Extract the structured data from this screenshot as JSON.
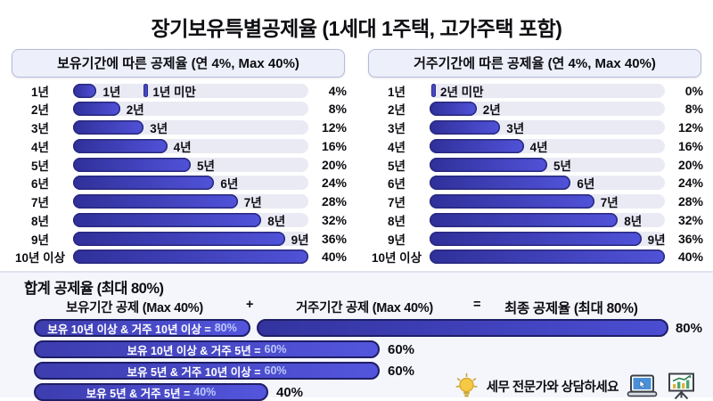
{
  "title": "장기보유특별공제율 (1세대 1주택, 고가주택 포함)",
  "panels": [
    {
      "header": "보유기간에 따른 공제율 (연 4%, Max 40%)",
      "rows": [
        {
          "label": "1년",
          "bar_label": "1년",
          "marker": "1년 미만",
          "value": 4,
          "value_text": "4%"
        },
        {
          "label": "2년",
          "bar_label": "2년",
          "value": 8,
          "value_text": "8%"
        },
        {
          "label": "3년",
          "bar_label": "3년",
          "value": 12,
          "value_text": "12%"
        },
        {
          "label": "4년",
          "bar_label": "4년",
          "value": 16,
          "value_text": "16%"
        },
        {
          "label": "5년",
          "bar_label": "5년",
          "value": 20,
          "value_text": "20%"
        },
        {
          "label": "6년",
          "bar_label": "6년",
          "value": 24,
          "value_text": "24%"
        },
        {
          "label": "7년",
          "bar_label": "7년",
          "value": 28,
          "value_text": "28%"
        },
        {
          "label": "8년",
          "bar_label": "8년",
          "value": 32,
          "value_text": "32%"
        },
        {
          "label": "9년",
          "bar_label": "9년",
          "value": 36,
          "value_text": "36%"
        },
        {
          "label": "10년 이상",
          "value": 40,
          "value_text": "40%"
        }
      ]
    },
    {
      "header": "거주기간에 따른 공제율 (연 4%, Max 40%)",
      "rows": [
        {
          "label": "1년",
          "marker": "2년 미만",
          "value": 0,
          "value_text": "0%"
        },
        {
          "label": "2년",
          "bar_label": "2년",
          "value": 8,
          "value_text": "8%"
        },
        {
          "label": "3년",
          "bar_label": "3년",
          "value": 12,
          "value_text": "12%"
        },
        {
          "label": "4년",
          "bar_label": "4년",
          "value": 16,
          "value_text": "16%"
        },
        {
          "label": "5년",
          "bar_label": "5년",
          "value": 20,
          "value_text": "20%"
        },
        {
          "label": "6년",
          "bar_label": "6년",
          "value": 24,
          "value_text": "24%"
        },
        {
          "label": "7년",
          "bar_label": "7년",
          "value": 28,
          "value_text": "28%"
        },
        {
          "label": "8년",
          "bar_label": "8년",
          "value": 32,
          "value_text": "32%"
        },
        {
          "label": "9년",
          "bar_label": "9년",
          "value": 36,
          "value_text": "36%"
        },
        {
          "label": "10년 이상",
          "value": 40,
          "value_text": "40%"
        }
      ]
    }
  ],
  "summary": {
    "heading": "합계 공제율 (최대 80%)",
    "formula": {
      "left": "보유기간 공제 (Max 40%)",
      "plus": "+",
      "middle": "거주기간 공제 (Max 40%)",
      "equals": "=",
      "right": "최종 공제율 (최대 80%)"
    },
    "rows": [
      {
        "label_prefix": "보유 10년 이상 & 거주 10년 이상 =",
        "label_value": "80%",
        "value": 80,
        "value_text": "80%"
      },
      {
        "label_prefix": "보유 10년 이상 & 거주 5년 =",
        "label_value": "60%",
        "value": 60,
        "value_text": "60%"
      },
      {
        "label_prefix": "보유 5년 & 거주 10년 이상 =",
        "label_value": "60%",
        "value": 60,
        "value_text": "60%"
      },
      {
        "label_prefix": "보유 5년 & 거주 5년 =",
        "label_value": "40%",
        "value": 40,
        "value_text": "40%"
      }
    ],
    "cta_text": "세무 전문가와 상담하세요"
  },
  "icons": {
    "lightbulb": "lightbulb-icon",
    "laptop": "laptop-cursor-icon",
    "presentation": "presentation-chart-icon"
  },
  "colors": {
    "bar_start": "#30309a",
    "bar_end": "#5052d8",
    "bar_border": "#1e1e66",
    "track": "#e9eaf4",
    "pill_value_text": "#bcc8fb",
    "header_bg": "#edeffa",
    "summary_bg": "#f5f6fc",
    "bulb_yellow": "#f6c945",
    "laptop_screen": "#4a90d9"
  },
  "chart_data": [
    {
      "type": "bar",
      "orientation": "horizontal",
      "title": "보유기간에 따른 공제율 (연 4%, Max 40%)",
      "categories": [
        "1년",
        "2년",
        "3년",
        "4년",
        "5년",
        "6년",
        "7년",
        "8년",
        "9년",
        "10년 이상"
      ],
      "values": [
        4,
        8,
        12,
        16,
        20,
        24,
        28,
        32,
        36,
        40
      ],
      "unit": "%",
      "xlim": [
        0,
        40
      ],
      "annotations": [
        "1년 미만 marker on first row"
      ],
      "legend": "none",
      "grid": false
    },
    {
      "type": "bar",
      "orientation": "horizontal",
      "title": "거주기간에 따른 공제율 (연 4%, Max 40%)",
      "categories": [
        "1년",
        "2년",
        "3년",
        "4년",
        "5년",
        "6년",
        "7년",
        "8년",
        "9년",
        "10년 이상"
      ],
      "values": [
        0,
        8,
        12,
        16,
        20,
        24,
        28,
        32,
        36,
        40
      ],
      "unit": "%",
      "xlim": [
        0,
        40
      ],
      "annotations": [
        "2년 미만 marker on first row"
      ],
      "legend": "none",
      "grid": false
    },
    {
      "type": "bar",
      "orientation": "horizontal",
      "title": "합계 공제율 (최대 80%)",
      "subtitle": "보유기간 공제 (Max 40%) + 거주기간 공제 (Max 40%) = 최종 공제율 (최대 80%)",
      "categories": [
        "보유 10년 이상 & 거주 10년 이상",
        "보유 10년 이상 & 거주 5년",
        "보유 5년 & 거주 10년 이상",
        "보유 5년 & 거주 5년"
      ],
      "values": [
        80,
        60,
        60,
        40
      ],
      "unit": "%",
      "xlim": [
        0,
        80
      ],
      "legend": "none",
      "grid": false
    }
  ]
}
